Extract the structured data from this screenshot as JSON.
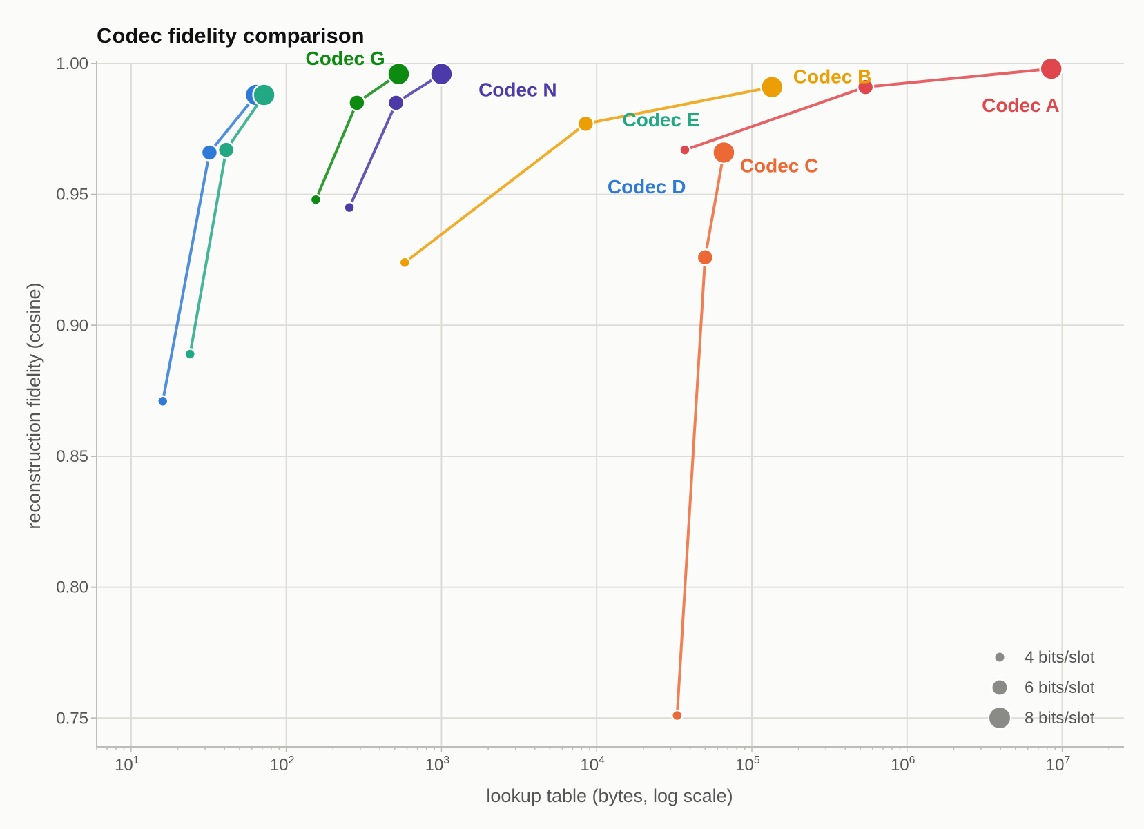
{
  "chart_data": {
    "type": "scatter",
    "title": "Codec fidelity comparison",
    "xlabel": "lookup table  (bytes, log scale)",
    "ylabel": "reconstruction fidelity  (cosine)",
    "x_scale": "log",
    "xlim": [
      6,
      25000000
    ],
    "ylim": [
      0.739,
      1.0
    ],
    "x_ticks": [
      {
        "value": 10,
        "base": "10",
        "exp": "1"
      },
      {
        "value": 100,
        "base": "10",
        "exp": "2"
      },
      {
        "value": 1000,
        "base": "10",
        "exp": "3"
      },
      {
        "value": 10000,
        "base": "10",
        "exp": "4"
      },
      {
        "value": 100000,
        "base": "10",
        "exp": "5"
      },
      {
        "value": 1000000,
        "base": "10",
        "exp": "6"
      },
      {
        "value": 10000000,
        "base": "10",
        "exp": "7"
      }
    ],
    "y_ticks": [
      {
        "value": 0.75,
        "label": "0.75"
      },
      {
        "value": 0.8,
        "label": "0.80"
      },
      {
        "value": 0.85,
        "label": "0.85"
      },
      {
        "value": 0.9,
        "label": "0.90"
      },
      {
        "value": 0.95,
        "label": "0.95"
      },
      {
        "value": 1.0,
        "label": "1.00"
      }
    ],
    "grid": true,
    "size_legend": {
      "placement": "bottom-right",
      "entries": [
        {
          "bits": 4,
          "label": "4 bits/slot"
        },
        {
          "bits": 6,
          "label": "6 bits/slot"
        },
        {
          "bits": 8,
          "label": "8 bits/slot"
        }
      ]
    },
    "series": [
      {
        "name": "Codec A",
        "color": "#e0474c",
        "label_at": [
          5400000,
          0.9815
        ],
        "points": [
          {
            "x": 37000,
            "y": 0.967,
            "bits": 4
          },
          {
            "x": 540000,
            "y": 0.991,
            "bits": 6
          },
          {
            "x": 8500000,
            "y": 0.998,
            "bits": 8
          }
        ]
      },
      {
        "name": "Codec B",
        "color": "#ec9f05",
        "label_at": [
          330000,
          0.9925
        ],
        "points": [
          {
            "x": 580,
            "y": 0.924,
            "bits": 4
          },
          {
            "x": 8500,
            "y": 0.977,
            "bits": 6
          },
          {
            "x": 135000,
            "y": 0.991,
            "bits": 8
          }
        ]
      },
      {
        "name": "Codec C",
        "color": "#ec6936",
        "label_at": [
          150000,
          0.9585
        ],
        "points": [
          {
            "x": 33000,
            "y": 0.751,
            "bits": 4
          },
          {
            "x": 50000,
            "y": 0.926,
            "bits": 6
          },
          {
            "x": 66000,
            "y": 0.966,
            "bits": 8
          }
        ]
      },
      {
        "name": "Codec D",
        "color": "#2f7ad6",
        "label_at": [
          21000,
          0.9505
        ],
        "points": [
          {
            "x": 16,
            "y": 0.871,
            "bits": 4
          },
          {
            "x": 32,
            "y": 0.966,
            "bits": 6
          },
          {
            "x": 64,
            "y": 0.988,
            "bits": 8
          }
        ]
      },
      {
        "name": "Codec E",
        "color": "#23a884",
        "label_at": [
          26000,
          0.976
        ],
        "points": [
          {
            "x": 24,
            "y": 0.889,
            "bits": 4
          },
          {
            "x": 41,
            "y": 0.967,
            "bits": 6
          },
          {
            "x": 72,
            "y": 0.988,
            "bits": 8
          }
        ]
      },
      {
        "name": "Codec G",
        "color": "#0d8a10",
        "label_at": [
          240,
          0.9995
        ],
        "points": [
          {
            "x": 155,
            "y": 0.948,
            "bits": 4
          },
          {
            "x": 285,
            "y": 0.985,
            "bits": 6
          },
          {
            "x": 530,
            "y": 0.996,
            "bits": 8
          }
        ]
      },
      {
        "name": "Codec N",
        "color": "#4c3aa8",
        "label_at": [
          3100,
          0.9875
        ],
        "points": [
          {
            "x": 255,
            "y": 0.945,
            "bits": 4
          },
          {
            "x": 510,
            "y": 0.985,
            "bits": 6
          },
          {
            "x": 1000,
            "y": 0.996,
            "bits": 8
          }
        ]
      }
    ]
  }
}
